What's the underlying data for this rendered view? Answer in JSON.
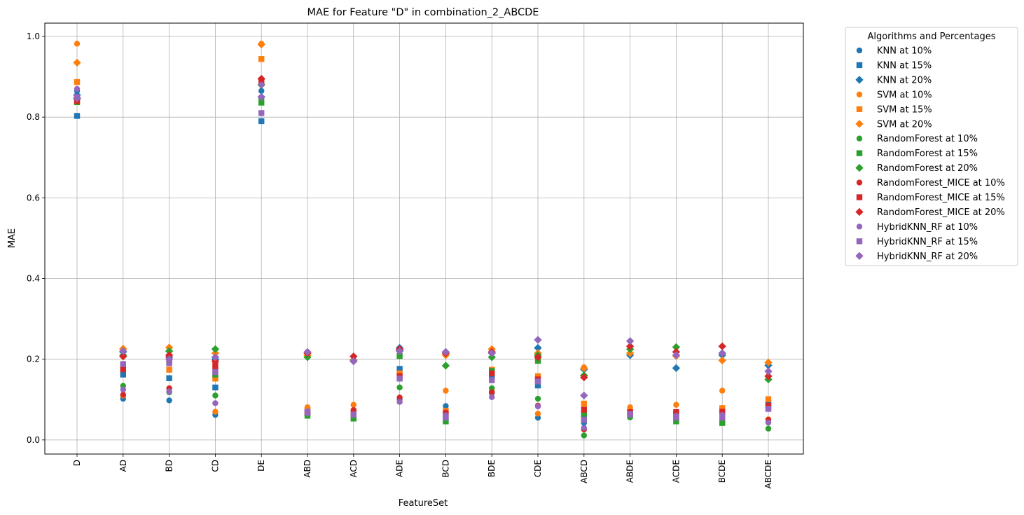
{
  "chart_data": {
    "type": "scatter",
    "title": "MAE for Feature \"D\" in combination_2_ABCDE",
    "xlabel": "FeatureSet",
    "ylabel": "MAE",
    "ylim": [
      -0.035,
      1.033
    ],
    "yticks": [
      "0.0",
      "0.2",
      "0.4",
      "0.6",
      "0.8",
      "1.0"
    ],
    "grid": true,
    "legend_title": "Algorithms and Percentages",
    "legend_position": "outside-right-top",
    "categories": [
      "D",
      "AD",
      "BD",
      "CD",
      "DE",
      "ABD",
      "ACD",
      "ADE",
      "BCD",
      "BDE",
      "CDE",
      "ABCD",
      "ABDE",
      "ACDE",
      "BCDE",
      "ABCDE"
    ],
    "series": [
      {
        "name": "KNN at 10%",
        "color": "#1f77b4",
        "marker": "circle",
        "values": [
          0.865,
          0.102,
          0.098,
          0.062,
          0.865,
          0.064,
          0.065,
          0.1,
          0.084,
          0.116,
          0.055,
          0.042,
          0.06,
          0.059,
          0.058,
          0.043
        ]
      },
      {
        "name": "KNN at 15%",
        "color": "#1f77b4",
        "marker": "square",
        "values": [
          0.803,
          0.162,
          0.153,
          0.13,
          0.79,
          0.066,
          0.061,
          0.176,
          0.052,
          0.158,
          0.135,
          0.055,
          0.065,
          0.055,
          0.06,
          0.089
        ]
      },
      {
        "name": "KNN at 20%",
        "color": "#1f77b4",
        "marker": "diamond",
        "values": [
          0.855,
          0.218,
          0.205,
          0.2,
          0.85,
          0.215,
          0.198,
          0.228,
          0.215,
          0.215,
          0.228,
          0.175,
          0.21,
          0.178,
          0.21,
          0.185
        ]
      },
      {
        "name": "SVM at 10%",
        "color": "#ff7f0e",
        "marker": "circle",
        "values": [
          0.982,
          0.11,
          0.12,
          0.07,
          0.982,
          0.081,
          0.087,
          0.095,
          0.122,
          0.121,
          0.065,
          0.18,
          0.081,
          0.087,
          0.122,
          0.051
        ]
      },
      {
        "name": "SVM at 15%",
        "color": "#ff7f0e",
        "marker": "square",
        "values": [
          0.887,
          0.185,
          0.174,
          0.152,
          0.944,
          0.074,
          0.07,
          0.165,
          0.072,
          0.174,
          0.158,
          0.09,
          0.069,
          0.065,
          0.079,
          0.101
        ]
      },
      {
        "name": "SVM at 20%",
        "color": "#ff7f0e",
        "marker": "diamond",
        "values": [
          0.935,
          0.226,
          0.229,
          0.215,
          0.98,
          0.21,
          0.197,
          0.22,
          0.21,
          0.225,
          0.215,
          0.178,
          0.215,
          0.208,
          0.197,
          0.192
        ]
      },
      {
        "name": "RandomForest at 10%",
        "color": "#2ca02c",
        "marker": "circle",
        "values": [
          0.84,
          0.134,
          0.118,
          0.11,
          0.845,
          0.062,
          0.058,
          0.13,
          0.05,
          0.128,
          0.102,
          0.011,
          0.056,
          0.049,
          0.044,
          0.028
        ]
      },
      {
        "name": "RandomForest at 15%",
        "color": "#2ca02c",
        "marker": "square",
        "values": [
          0.837,
          0.18,
          0.195,
          0.162,
          0.836,
          0.06,
          0.053,
          0.208,
          0.046,
          0.171,
          0.196,
          0.065,
          0.06,
          0.046,
          0.042,
          0.08
        ]
      },
      {
        "name": "RandomForest at 20%",
        "color": "#2ca02c",
        "marker": "diamond",
        "values": [
          0.845,
          0.21,
          0.22,
          0.225,
          0.88,
          0.205,
          0.195,
          0.222,
          0.184,
          0.205,
          0.21,
          0.16,
          0.225,
          0.23,
          0.215,
          0.15
        ]
      },
      {
        "name": "RandomForest_MICE at 10%",
        "color": "#d62728",
        "marker": "circle",
        "values": [
          0.845,
          0.112,
          0.128,
          0.19,
          0.885,
          0.07,
          0.074,
          0.105,
          0.068,
          0.118,
          0.085,
          0.026,
          0.065,
          0.068,
          0.07,
          0.05
        ]
      },
      {
        "name": "RandomForest_MICE at 15%",
        "color": "#d62728",
        "marker": "square",
        "values": [
          0.84,
          0.175,
          0.2,
          0.182,
          0.885,
          0.068,
          0.065,
          0.158,
          0.065,
          0.165,
          0.15,
          0.075,
          0.069,
          0.069,
          0.07,
          0.085
        ]
      },
      {
        "name": "RandomForest_MICE at 20%",
        "color": "#d62728",
        "marker": "diamond",
        "values": [
          0.848,
          0.207,
          0.21,
          0.195,
          0.895,
          0.215,
          0.207,
          0.225,
          0.215,
          0.218,
          0.205,
          0.155,
          0.232,
          0.218,
          0.232,
          0.158
        ]
      },
      {
        "name": "HybridKNN_RF at 10%",
        "color": "#9467bd",
        "marker": "circle",
        "values": [
          0.87,
          0.125,
          0.12,
          0.091,
          0.88,
          0.066,
          0.062,
          0.094,
          0.061,
          0.106,
          0.083,
          0.03,
          0.062,
          0.06,
          0.062,
          0.043
        ]
      },
      {
        "name": "HybridKNN_RF at 15%",
        "color": "#9467bd",
        "marker": "square",
        "values": [
          0.85,
          0.188,
          0.19,
          0.168,
          0.81,
          0.07,
          0.063,
          0.152,
          0.055,
          0.148,
          0.145,
          0.05,
          0.064,
          0.055,
          0.055,
          0.077
        ]
      },
      {
        "name": "HybridKNN_RF at 20%",
        "color": "#9467bd",
        "marker": "diamond",
        "values": [
          0.847,
          0.22,
          0.2,
          0.205,
          0.85,
          0.218,
          0.195,
          0.22,
          0.218,
          0.215,
          0.248,
          0.11,
          0.245,
          0.21,
          0.215,
          0.17
        ]
      }
    ]
  }
}
